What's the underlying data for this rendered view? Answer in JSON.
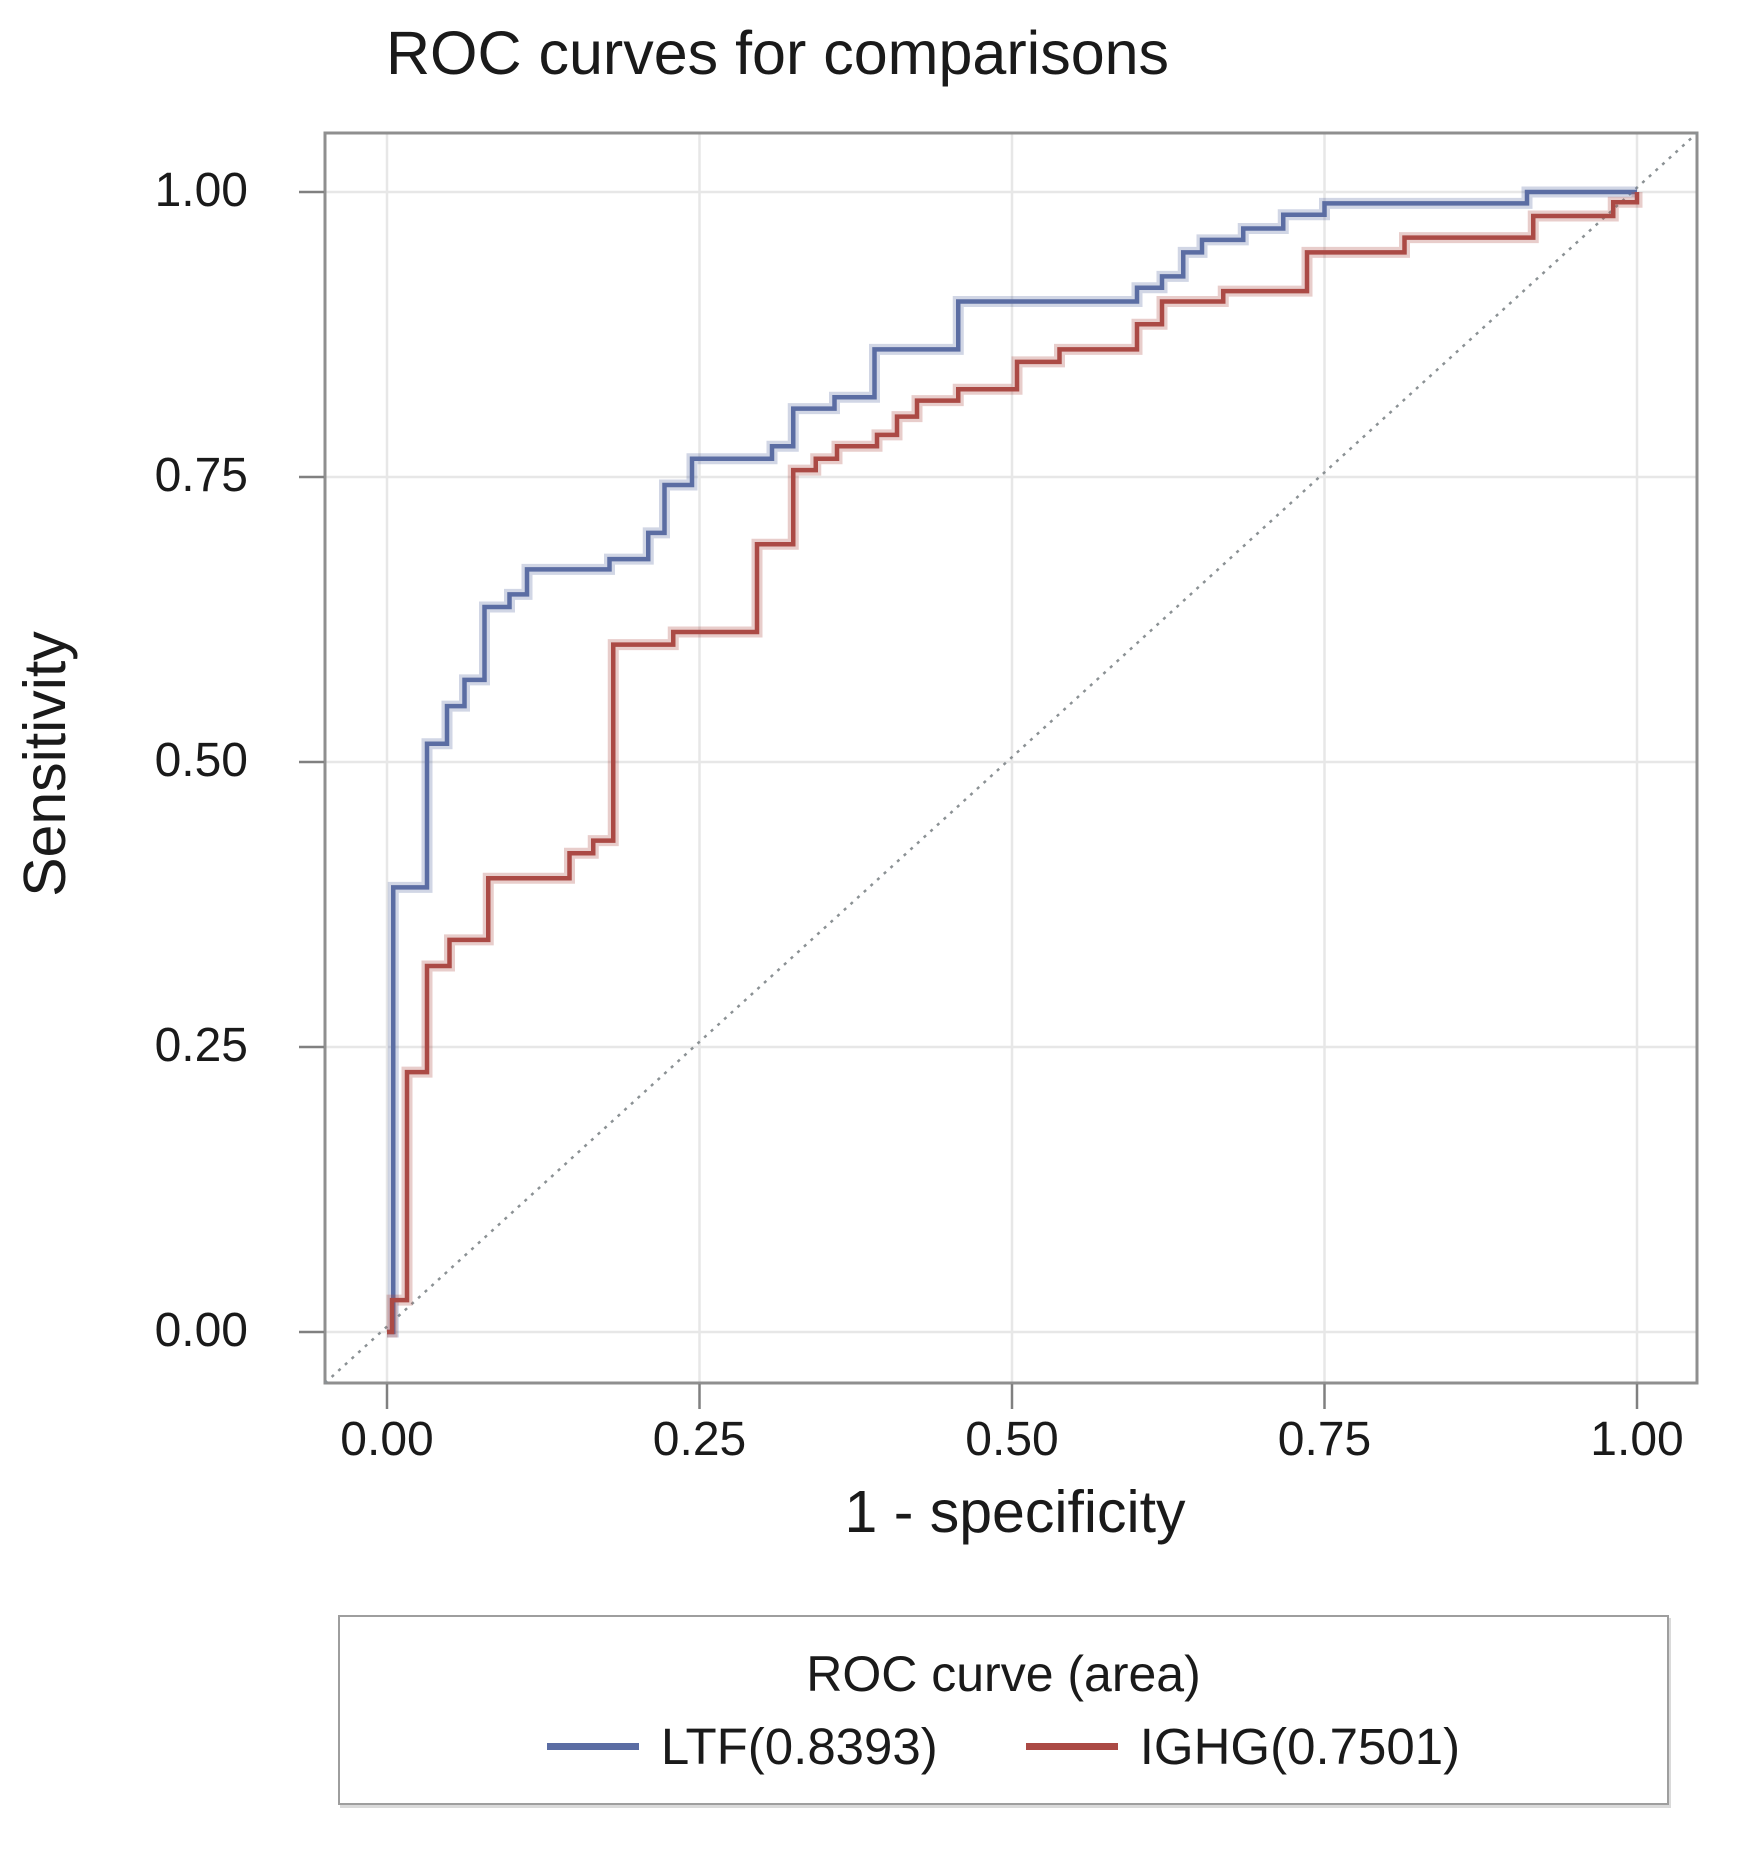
{
  "chart_data": {
    "type": "line",
    "subtype": "roc-step-curves",
    "title": "ROC curves for comparisons",
    "xlabel": "1 - specificity",
    "ylabel": "Sensitivity",
    "xlim": [
      -0.05,
      1.05
    ],
    "ylim": [
      -0.04,
      1.05
    ],
    "grid": true,
    "x_ticks": [
      {
        "value": 0.0,
        "label": "0.00"
      },
      {
        "value": 0.25,
        "label": "0.25"
      },
      {
        "value": 0.5,
        "label": "0.50"
      },
      {
        "value": 0.75,
        "label": "0.75"
      },
      {
        "value": 1.0,
        "label": "1.00"
      }
    ],
    "y_ticks": [
      {
        "value": 0.0,
        "label": "0.00"
      },
      {
        "value": 0.25,
        "label": "0.25"
      },
      {
        "value": 0.5,
        "label": "0.50"
      },
      {
        "value": 0.75,
        "label": "0.75"
      },
      {
        "value": 1.0,
        "label": "1.00"
      }
    ],
    "reference_line": {
      "type": "diagonal",
      "from": [
        0,
        0
      ],
      "to": [
        1,
        1
      ],
      "color": "#8b9194",
      "dashed": true
    },
    "legend": {
      "title": "ROC curve (area)",
      "position": "bottom"
    },
    "colors": {
      "grid": "#e7e7e7",
      "border": "#8f8f8f",
      "tick": "#808080",
      "text": "#1a1a1a"
    },
    "series": [
      {
        "name": "LTF",
        "auc": 0.8393,
        "legend_label": "LTF(0.8393)",
        "color": "#5b6da3",
        "points": [
          [
            0,
            0
          ],
          [
            0.005,
            0
          ],
          [
            0.005,
            0.39
          ],
          [
            0.032,
            0.39
          ],
          [
            0.032,
            0.516
          ],
          [
            0.048,
            0.516
          ],
          [
            0.048,
            0.549
          ],
          [
            0.062,
            0.549
          ],
          [
            0.062,
            0.572
          ],
          [
            0.078,
            0.572
          ],
          [
            0.078,
            0.636
          ],
          [
            0.098,
            0.636
          ],
          [
            0.098,
            0.647
          ],
          [
            0.112,
            0.647
          ],
          [
            0.112,
            0.669
          ],
          [
            0.178,
            0.669
          ],
          [
            0.178,
            0.678
          ],
          [
            0.209,
            0.678
          ],
          [
            0.209,
            0.701
          ],
          [
            0.222,
            0.701
          ],
          [
            0.222,
            0.743
          ],
          [
            0.244,
            0.743
          ],
          [
            0.244,
            0.766
          ],
          [
            0.308,
            0.766
          ],
          [
            0.308,
            0.777
          ],
          [
            0.325,
            0.777
          ],
          [
            0.325,
            0.81
          ],
          [
            0.358,
            0.81
          ],
          [
            0.358,
            0.82
          ],
          [
            0.39,
            0.82
          ],
          [
            0.39,
            0.862
          ],
          [
            0.457,
            0.862
          ],
          [
            0.457,
            0.904
          ],
          [
            0.6,
            0.904
          ],
          [
            0.6,
            0.916
          ],
          [
            0.62,
            0.916
          ],
          [
            0.62,
            0.926
          ],
          [
            0.637,
            0.926
          ],
          [
            0.637,
            0.947
          ],
          [
            0.652,
            0.947
          ],
          [
            0.652,
            0.958
          ],
          [
            0.685,
            0.958
          ],
          [
            0.685,
            0.968
          ],
          [
            0.717,
            0.968
          ],
          [
            0.717,
            0.98
          ],
          [
            0.75,
            0.98
          ],
          [
            0.75,
            0.99
          ],
          [
            0.912,
            0.99
          ],
          [
            0.912,
            1
          ],
          [
            1,
            1
          ]
        ]
      },
      {
        "name": "IGHG",
        "auc": 0.7501,
        "legend_label": "IGHG(0.7501)",
        "color": "#ab4a45",
        "points": [
          [
            0,
            0
          ],
          [
            0.004,
            0
          ],
          [
            0.004,
            0.028
          ],
          [
            0.016,
            0.028
          ],
          [
            0.016,
            0.228
          ],
          [
            0.032,
            0.228
          ],
          [
            0.032,
            0.321
          ],
          [
            0.05,
            0.321
          ],
          [
            0.05,
            0.344
          ],
          [
            0.081,
            0.344
          ],
          [
            0.081,
            0.398
          ],
          [
            0.146,
            0.398
          ],
          [
            0.146,
            0.42
          ],
          [
            0.165,
            0.42
          ],
          [
            0.165,
            0.431
          ],
          [
            0.181,
            0.431
          ],
          [
            0.181,
            0.603
          ],
          [
            0.229,
            0.603
          ],
          [
            0.229,
            0.614
          ],
          [
            0.296,
            0.614
          ],
          [
            0.296,
            0.691
          ],
          [
            0.325,
            0.691
          ],
          [
            0.325,
            0.756
          ],
          [
            0.343,
            0.756
          ],
          [
            0.343,
            0.766
          ],
          [
            0.36,
            0.766
          ],
          [
            0.36,
            0.777
          ],
          [
            0.392,
            0.777
          ],
          [
            0.392,
            0.787
          ],
          [
            0.408,
            0.787
          ],
          [
            0.408,
            0.803
          ],
          [
            0.424,
            0.803
          ],
          [
            0.424,
            0.817
          ],
          [
            0.457,
            0.817
          ],
          [
            0.457,
            0.827
          ],
          [
            0.504,
            0.827
          ],
          [
            0.504,
            0.851
          ],
          [
            0.538,
            0.851
          ],
          [
            0.538,
            0.862
          ],
          [
            0.6,
            0.862
          ],
          [
            0.6,
            0.884
          ],
          [
            0.62,
            0.884
          ],
          [
            0.62,
            0.904
          ],
          [
            0.669,
            0.904
          ],
          [
            0.669,
            0.913
          ],
          [
            0.736,
            0.913
          ],
          [
            0.736,
            0.947
          ],
          [
            0.814,
            0.947
          ],
          [
            0.814,
            0.96
          ],
          [
            0.917,
            0.96
          ],
          [
            0.917,
            0.979
          ],
          [
            0.981,
            0.979
          ],
          [
            0.981,
            0.991
          ],
          [
            1,
            0.991
          ],
          [
            1,
            1
          ]
        ]
      }
    ]
  }
}
